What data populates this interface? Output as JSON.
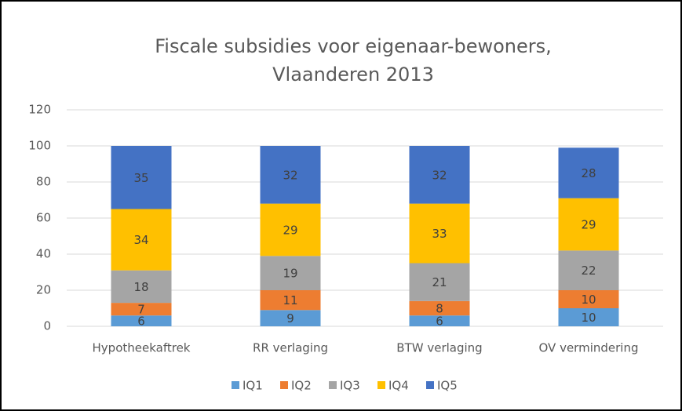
{
  "chart_data": {
    "type": "stacked_bar",
    "title": [
      "Fiscale subsidies voor eigenaar-bewoners,",
      "Vlaanderen 2013"
    ],
    "categories": [
      "Hypotheekaftrek",
      "RR verlaging",
      "BTW verlaging",
      "OV vermindering"
    ],
    "series": [
      {
        "name": "IQ1",
        "color": "#5b9bd5",
        "values": [
          6,
          9,
          6,
          10
        ]
      },
      {
        "name": "IQ2",
        "color": "#ed7d31",
        "values": [
          7,
          11,
          8,
          10
        ]
      },
      {
        "name": "IQ3",
        "color": "#a5a5a5",
        "values": [
          18,
          19,
          21,
          22
        ]
      },
      {
        "name": "IQ4",
        "color": "#ffc000",
        "values": [
          34,
          29,
          33,
          29
        ]
      },
      {
        "name": "IQ5",
        "color": "#4472c4",
        "values": [
          35,
          32,
          32,
          28
        ]
      }
    ],
    "ylim": [
      0,
      120
    ],
    "yticks": [
      0,
      20,
      40,
      60,
      80,
      100,
      120
    ],
    "grid": true,
    "legend": "bottom"
  }
}
